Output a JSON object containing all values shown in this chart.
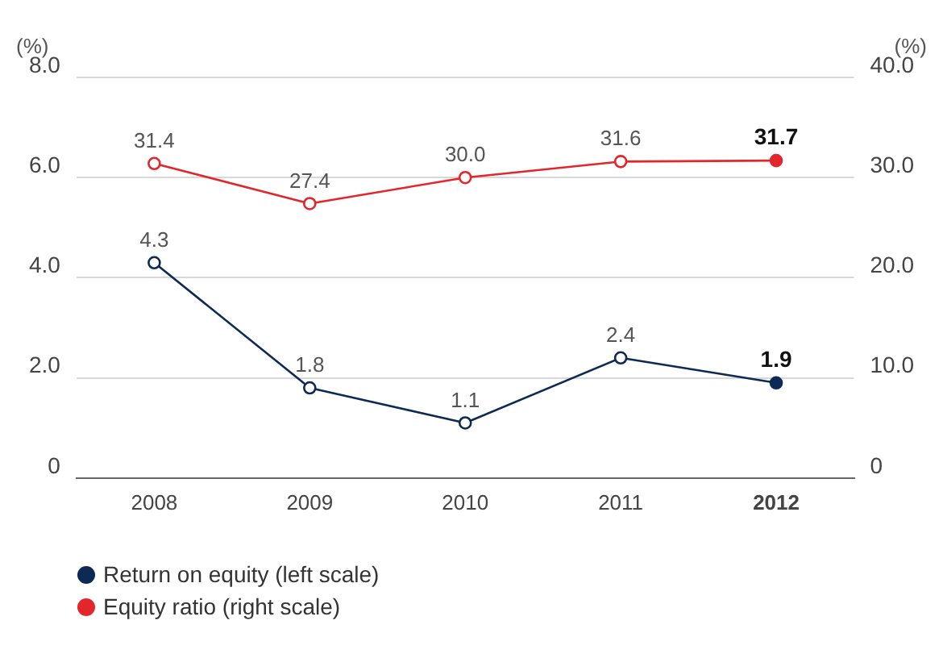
{
  "chart_data": {
    "type": "line",
    "ylabel": "(%)",
    "y2label": "(%)",
    "categories": [
      "2008",
      "2009",
      "2010",
      "2011",
      "2012"
    ],
    "series": [
      {
        "name": "Return on equity (left scale)",
        "color": "#0d2a55",
        "values": [
          4.3,
          1.8,
          1.1,
          2.4,
          1.9
        ],
        "value_labels": [
          "4.3",
          "1.8",
          "1.1",
          "2.4",
          "1.9"
        ]
      },
      {
        "name": "Equity ratio (right scale)",
        "color": "#e3262c",
        "values": [
          31.4,
          27.4,
          30.0,
          31.6,
          31.7
        ],
        "value_labels": [
          "31.4",
          "27.4",
          "30.0",
          "31.6",
          "31.7"
        ],
        "axis": "y2"
      }
    ],
    "ylim": [
      0,
      8
    ],
    "yticks": [
      {
        "value": 0,
        "label": "0"
      },
      {
        "value": 2,
        "label": "2.0"
      },
      {
        "value": 4,
        "label": "4.0"
      },
      {
        "value": 6,
        "label": "6.0"
      },
      {
        "value": 8,
        "label": "8.0"
      }
    ],
    "y2lim": [
      0,
      40
    ],
    "y2ticks": [
      {
        "value": 0,
        "label": "0"
      },
      {
        "value": 10,
        "label": "10.0"
      },
      {
        "value": 20,
        "label": "20.0"
      },
      {
        "value": 30,
        "label": "30.0"
      },
      {
        "value": 40,
        "label": "40.0"
      }
    ],
    "grid": "y",
    "legend": "bottom left",
    "marker": "circle",
    "line_style": "solid"
  }
}
